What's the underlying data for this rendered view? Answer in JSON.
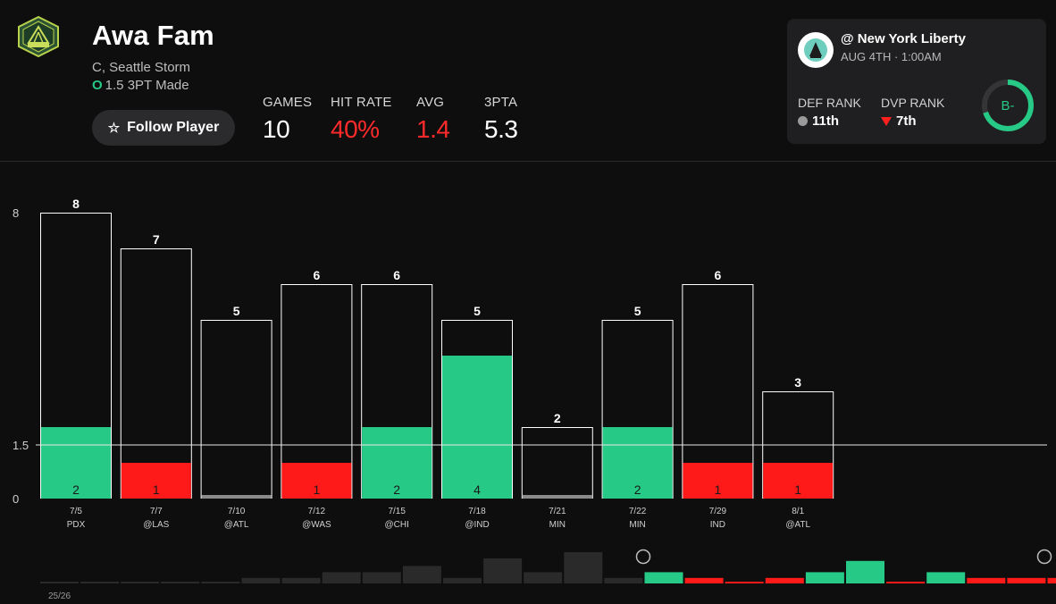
{
  "player": {
    "name": "Awa Fam",
    "subtitle": "C, Seattle Storm",
    "prop_mark": "O",
    "prop": "1.5 3PT Made",
    "follow_label": "Follow Player"
  },
  "stats": [
    {
      "label": "GAMES",
      "value": "10",
      "color": "#ffffff"
    },
    {
      "label": "HIT RATE",
      "value": "40%",
      "color": "#ff2a2a"
    },
    {
      "label": "AVG",
      "value": "1.4",
      "color": "#ff2a2a"
    },
    {
      "label": "3PTA",
      "value": "5.3",
      "color": "#ffffff"
    }
  ],
  "opponent": {
    "matchup": "@ New York Liberty",
    "time": "AUG 4TH · 1:00AM",
    "def_rank_label": "DEF RANK",
    "def_rank": "11th",
    "dvp_rank_label": "DVP RANK",
    "dvp_rank": "7th",
    "grade": "B-",
    "grade_fraction": 0.7
  },
  "colors": {
    "hit": "#26c985",
    "miss": "#ff1a1a",
    "zero": "#8a8a8a",
    "background": "#0e0e0f",
    "card": "#1f1f21"
  },
  "chart_data": {
    "type": "bar",
    "line": 1.5,
    "y_ticks": [
      "8",
      "1.5",
      "0"
    ],
    "ylim": [
      0,
      8
    ],
    "games": [
      {
        "date": "7/5",
        "opp": "PDX",
        "attempts": 8,
        "made": 2
      },
      {
        "date": "7/7",
        "opp": "@LAS",
        "attempts": 7,
        "made": 1
      },
      {
        "date": "7/10",
        "opp": "@ATL",
        "attempts": 5,
        "made": 0
      },
      {
        "date": "7/12",
        "opp": "@WAS",
        "attempts": 6,
        "made": 1
      },
      {
        "date": "7/15",
        "opp": "@CHI",
        "attempts": 6,
        "made": 2
      },
      {
        "date": "7/18",
        "opp": "@IND",
        "attempts": 5,
        "made": 4
      },
      {
        "date": "7/21",
        "opp": "MIN",
        "attempts": 2,
        "made": 0
      },
      {
        "date": "7/22",
        "opp": "MIN",
        "attempts": 5,
        "made": 2
      },
      {
        "date": "7/29",
        "opp": "IND",
        "attempts": 6,
        "made": 1
      },
      {
        "date": "8/1",
        "opp": "@ATL",
        "attempts": 3,
        "made": 1
      }
    ]
  },
  "timeline": {
    "season_label": "25/26",
    "bars": [
      {
        "v": 0.05,
        "c": "dark"
      },
      {
        "v": 0.05,
        "c": "dark"
      },
      {
        "v": 0.05,
        "c": "dark"
      },
      {
        "v": 0.05,
        "c": "dark"
      },
      {
        "v": 0.05,
        "c": "dark"
      },
      {
        "v": 0.22,
        "c": "dark"
      },
      {
        "v": 0.22,
        "c": "dark"
      },
      {
        "v": 0.45,
        "c": "dark"
      },
      {
        "v": 0.45,
        "c": "dark"
      },
      {
        "v": 0.7,
        "c": "dark"
      },
      {
        "v": 0.22,
        "c": "dark"
      },
      {
        "v": 1.0,
        "c": "dark"
      },
      {
        "v": 0.45,
        "c": "dark"
      },
      {
        "v": 1.25,
        "c": "dark"
      },
      {
        "v": 0.22,
        "c": "dark"
      },
      {
        "v": 0.45,
        "c": "hit"
      },
      {
        "v": 0.22,
        "c": "miss"
      },
      {
        "v": 0.06,
        "c": "miss"
      },
      {
        "v": 0.22,
        "c": "miss"
      },
      {
        "v": 0.45,
        "c": "hit"
      },
      {
        "v": 0.9,
        "c": "hit"
      },
      {
        "v": 0.06,
        "c": "miss"
      },
      {
        "v": 0.45,
        "c": "hit"
      },
      {
        "v": 0.22,
        "c": "miss"
      },
      {
        "v": 0.22,
        "c": "miss"
      },
      {
        "v": 0.22,
        "c": "miss"
      }
    ]
  }
}
